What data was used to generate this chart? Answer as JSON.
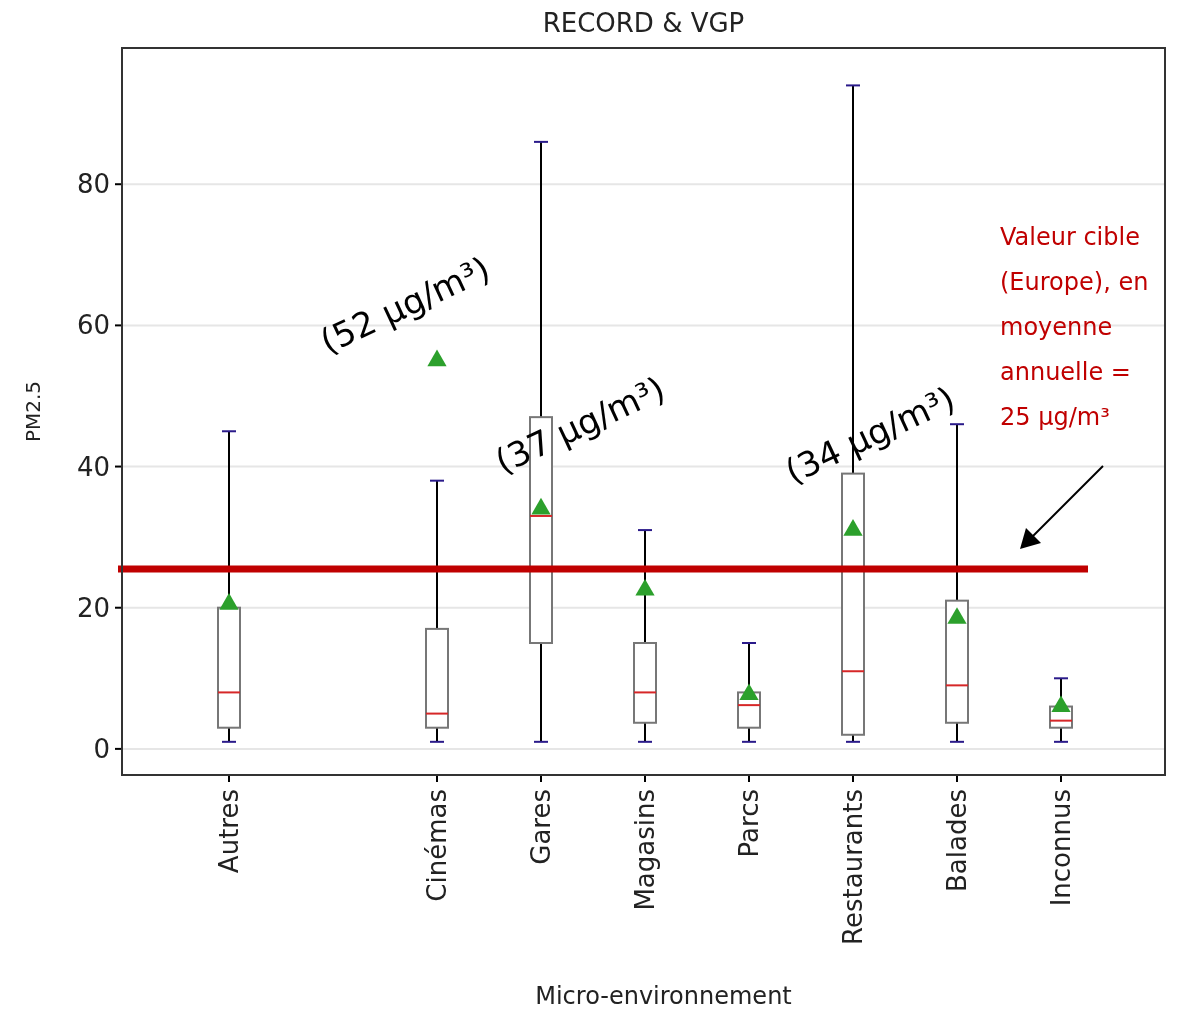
{
  "chart_data": {
    "type": "box",
    "title": "RECORD & VGP",
    "xlabel": "Micro-environnement",
    "ylabel": "PM2.5",
    "categories": [
      "Autres",
      null,
      "Cinémas",
      "Gares",
      "Magasins",
      "Parcs",
      "Restaurants",
      "Balades",
      "Inconnus"
    ],
    "boxes": [
      {
        "low": 1,
        "q1": 3,
        "median": 8,
        "q3": 20,
        "high": 45,
        "mean": 20.5
      },
      null,
      {
        "low": 1,
        "q1": 3,
        "median": 5,
        "q3": 17,
        "high": 38,
        "mean": 55
      },
      {
        "low": 1,
        "q1": 15,
        "median": 33,
        "q3": 47,
        "high": 86,
        "mean": 34
      },
      {
        "low": 1,
        "q1": 3.7,
        "median": 8,
        "q3": 15,
        "high": 31,
        "mean": 22.5
      },
      {
        "low": 1,
        "q1": 3,
        "median": 6.2,
        "q3": 8,
        "high": 15,
        "mean": 7.7
      },
      {
        "low": 1,
        "q1": 2,
        "median": 11,
        "q3": 39,
        "high": 94,
        "mean": 31
      },
      {
        "low": 1,
        "q1": 3.7,
        "median": 9,
        "q3": 21,
        "high": 46,
        "mean": 18.5
      },
      {
        "low": 1,
        "q1": 3,
        "median": 4,
        "q3": 6,
        "high": 10,
        "mean": 6
      }
    ],
    "ylim": [
      -3.7,
      99.3
    ],
    "yticks": [
      0,
      20,
      40,
      60,
      80
    ],
    "grid": "y",
    "marker": "triangle",
    "ref_lines": [
      {
        "axis": "y",
        "value": 25.5,
        "label": "Valeur cible (Europe), en moyenne annuelle = 25 µg/m³",
        "color": "#c00000"
      }
    ],
    "annotations": [
      "(52 µg/m³)",
      "(37 µg/m³)",
      "(34 µg/m³)"
    ]
  }
}
